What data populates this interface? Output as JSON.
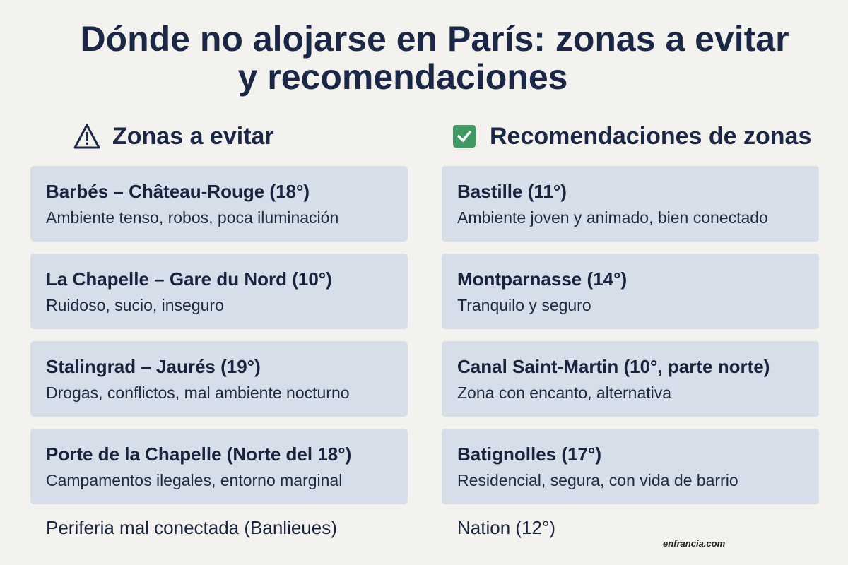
{
  "title": {
    "line1": "Dónde no alojarse en París: zonas a evitar",
    "line2": "y recomendaciones"
  },
  "avoid": {
    "heading": "Zonas a evitar",
    "icon": "warning-triangle-icon",
    "items": [
      {
        "name": "Barbés – Château-Rouge (18°)",
        "desc": "Ambiente tenso, robos, poca iluminación"
      },
      {
        "name": "La Chapelle – Gare du Nord (10°)",
        "desc": "Ruidoso, sucio, inseguro"
      },
      {
        "name": "Stalingrad – Jaurés (19°)",
        "desc": "Drogas, conflictos, mal ambiente nocturno"
      },
      {
        "name": "Porte de la Chapelle (Norte del 18°)",
        "desc": "Campamentos ilegales, entorno marginal"
      }
    ],
    "extra": "Periferia mal conectada (Banlieues)"
  },
  "recommend": {
    "heading": "Recomendaciones de zonas",
    "icon": "green-check-icon",
    "check_color": "#3d9a62",
    "items": [
      {
        "name": "Bastille (11°)",
        "desc": "Ambiente joven y animado, bien conectado"
      },
      {
        "name": "Montparnasse (14°)",
        "desc": "Tranquilo y seguro"
      },
      {
        "name": "Canal Saint-Martin (10°, parte norte)",
        "desc": "Zona con encanto, alternativa"
      },
      {
        "name": "Batignolles (17°)",
        "desc": "Residencial, segura, con vida de barrio"
      }
    ],
    "extra": "Nation (12°)"
  },
  "watermark": "enfrancia.com"
}
